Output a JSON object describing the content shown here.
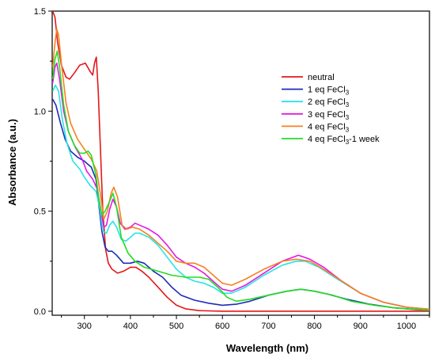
{
  "chart_data": {
    "type": "line",
    "title": "",
    "xlabel": "Wavelength (nm)",
    "ylabel": "Absorbance (a.u.)",
    "xlim": [
      230,
      1050
    ],
    "ylim": [
      -0.02,
      1.5
    ],
    "xticks": [
      300,
      400,
      500,
      600,
      700,
      800,
      900,
      1000
    ],
    "yticks": [
      0.0,
      0.5,
      1.0,
      1.5
    ],
    "ytick_labels": [
      "0.0",
      "0.5",
      "1.0",
      "1.5"
    ],
    "grid": false,
    "legend_position": "top-right",
    "series": [
      {
        "name": "neutral",
        "legend_main": "neutral",
        "legend_sub": "",
        "legend_tail": "",
        "color": "#e4171b",
        "points": [
          [
            231,
            1.5
          ],
          [
            236,
            1.47
          ],
          [
            242,
            1.34
          ],
          [
            250,
            1.23
          ],
          [
            260,
            1.17
          ],
          [
            268,
            1.16
          ],
          [
            278,
            1.19
          ],
          [
            290,
            1.23
          ],
          [
            302,
            1.24
          ],
          [
            312,
            1.2
          ],
          [
            318,
            1.18
          ],
          [
            322,
            1.24
          ],
          [
            326,
            1.27
          ],
          [
            330,
            1.1
          ],
          [
            335,
            0.8
          ],
          [
            340,
            0.5
          ],
          [
            346,
            0.31
          ],
          [
            352,
            0.24
          ],
          [
            360,
            0.21
          ],
          [
            372,
            0.19
          ],
          [
            385,
            0.2
          ],
          [
            400,
            0.22
          ],
          [
            412,
            0.22
          ],
          [
            425,
            0.2
          ],
          [
            440,
            0.17
          ],
          [
            460,
            0.12
          ],
          [
            480,
            0.07
          ],
          [
            500,
            0.03
          ],
          [
            520,
            0.012
          ],
          [
            550,
            0.003
          ],
          [
            600,
            0.0
          ],
          [
            1050,
            0.0
          ]
        ]
      },
      {
        "name": "1 eq FeCl3",
        "legend_main": "1 eq FeCl",
        "legend_sub": "3",
        "legend_tail": "",
        "color": "#1f2bb8",
        "points": [
          [
            231,
            1.06
          ],
          [
            238,
            1.03
          ],
          [
            248,
            0.94
          ],
          [
            258,
            0.86
          ],
          [
            270,
            0.8
          ],
          [
            285,
            0.77
          ],
          [
            300,
            0.75
          ],
          [
            315,
            0.72
          ],
          [
            325,
            0.66
          ],
          [
            332,
            0.52
          ],
          [
            338,
            0.4
          ],
          [
            345,
            0.32
          ],
          [
            352,
            0.3
          ],
          [
            360,
            0.3
          ],
          [
            370,
            0.28
          ],
          [
            385,
            0.24
          ],
          [
            400,
            0.24
          ],
          [
            415,
            0.25
          ],
          [
            430,
            0.24
          ],
          [
            450,
            0.2
          ],
          [
            470,
            0.17
          ],
          [
            490,
            0.12
          ],
          [
            510,
            0.08
          ],
          [
            540,
            0.055
          ],
          [
            570,
            0.04
          ],
          [
            600,
            0.03
          ],
          [
            630,
            0.035
          ],
          [
            660,
            0.05
          ],
          [
            700,
            0.08
          ],
          [
            740,
            0.1
          ],
          [
            770,
            0.11
          ],
          [
            800,
            0.1
          ],
          [
            830,
            0.085
          ],
          [
            870,
            0.06
          ],
          [
            920,
            0.035
          ],
          [
            970,
            0.018
          ],
          [
            1020,
            0.008
          ],
          [
            1050,
            0.005
          ]
        ]
      },
      {
        "name": "2 eq FeCl3",
        "legend_main": "2 eq FeCl",
        "legend_sub": "3",
        "legend_tail": "",
        "color": "#29e3e3",
        "points": [
          [
            231,
            1.1
          ],
          [
            237,
            1.13
          ],
          [
            244,
            1.1
          ],
          [
            252,
            0.96
          ],
          [
            262,
            0.84
          ],
          [
            275,
            0.75
          ],
          [
            290,
            0.71
          ],
          [
            300,
            0.67
          ],
          [
            312,
            0.63
          ],
          [
            325,
            0.6
          ],
          [
            333,
            0.52
          ],
          [
            340,
            0.4
          ],
          [
            348,
            0.39
          ],
          [
            355,
            0.43
          ],
          [
            362,
            0.45
          ],
          [
            370,
            0.42
          ],
          [
            380,
            0.36
          ],
          [
            390,
            0.35
          ],
          [
            400,
            0.37
          ],
          [
            410,
            0.39
          ],
          [
            420,
            0.39
          ],
          [
            440,
            0.37
          ],
          [
            460,
            0.33
          ],
          [
            480,
            0.27
          ],
          [
            500,
            0.21
          ],
          [
            520,
            0.17
          ],
          [
            540,
            0.15
          ],
          [
            560,
            0.14
          ],
          [
            580,
            0.12
          ],
          [
            600,
            0.09
          ],
          [
            620,
            0.09
          ],
          [
            650,
            0.12
          ],
          [
            690,
            0.18
          ],
          [
            730,
            0.23
          ],
          [
            760,
            0.25
          ],
          [
            780,
            0.25
          ],
          [
            810,
            0.22
          ],
          [
            850,
            0.16
          ],
          [
            900,
            0.09
          ],
          [
            950,
            0.045
          ],
          [
            1000,
            0.02
          ],
          [
            1050,
            0.01
          ]
        ]
      },
      {
        "name": "3 eq FeCl3",
        "legend_main": "3 eq FeCl",
        "legend_sub": "3",
        "legend_tail": "",
        "color": "#e11be3",
        "points": [
          [
            231,
            1.14
          ],
          [
            236,
            1.22
          ],
          [
            240,
            1.24
          ],
          [
            246,
            1.16
          ],
          [
            255,
            1.0
          ],
          [
            265,
            0.9
          ],
          [
            280,
            0.82
          ],
          [
            295,
            0.76
          ],
          [
            305,
            0.7
          ],
          [
            318,
            0.66
          ],
          [
            328,
            0.61
          ],
          [
            336,
            0.5
          ],
          [
            342,
            0.42
          ],
          [
            348,
            0.43
          ],
          [
            355,
            0.51
          ],
          [
            362,
            0.56
          ],
          [
            370,
            0.52
          ],
          [
            378,
            0.44
          ],
          [
            388,
            0.41
          ],
          [
            400,
            0.42
          ],
          [
            410,
            0.44
          ],
          [
            420,
            0.43
          ],
          [
            440,
            0.41
          ],
          [
            460,
            0.38
          ],
          [
            480,
            0.33
          ],
          [
            500,
            0.27
          ],
          [
            520,
            0.24
          ],
          [
            540,
            0.22
          ],
          [
            560,
            0.19
          ],
          [
            580,
            0.15
          ],
          [
            600,
            0.11
          ],
          [
            620,
            0.1
          ],
          [
            650,
            0.13
          ],
          [
            690,
            0.19
          ],
          [
            730,
            0.25
          ],
          [
            765,
            0.28
          ],
          [
            790,
            0.26
          ],
          [
            820,
            0.22
          ],
          [
            860,
            0.15
          ],
          [
            900,
            0.09
          ],
          [
            950,
            0.045
          ],
          [
            1000,
            0.02
          ],
          [
            1050,
            0.01
          ]
        ]
      },
      {
        "name": "4 eq FeCl3",
        "legend_main": "4 eq FeCl",
        "legend_sub": "3",
        "legend_tail": "",
        "color": "#f58220",
        "points": [
          [
            231,
            1.22
          ],
          [
            236,
            1.34
          ],
          [
            240,
            1.41
          ],
          [
            244,
            1.38
          ],
          [
            250,
            1.24
          ],
          [
            260,
            1.04
          ],
          [
            270,
            0.94
          ],
          [
            285,
            0.86
          ],
          [
            300,
            0.81
          ],
          [
            315,
            0.76
          ],
          [
            327,
            0.7
          ],
          [
            335,
            0.58
          ],
          [
            342,
            0.46
          ],
          [
            350,
            0.5
          ],
          [
            358,
            0.59
          ],
          [
            364,
            0.62
          ],
          [
            372,
            0.57
          ],
          [
            382,
            0.43
          ],
          [
            392,
            0.41
          ],
          [
            405,
            0.42
          ],
          [
            420,
            0.41
          ],
          [
            440,
            0.38
          ],
          [
            460,
            0.34
          ],
          [
            480,
            0.3
          ],
          [
            500,
            0.25
          ],
          [
            520,
            0.24
          ],
          [
            540,
            0.24
          ],
          [
            560,
            0.22
          ],
          [
            580,
            0.18
          ],
          [
            600,
            0.14
          ],
          [
            620,
            0.13
          ],
          [
            650,
            0.16
          ],
          [
            690,
            0.21
          ],
          [
            730,
            0.25
          ],
          [
            760,
            0.26
          ],
          [
            790,
            0.25
          ],
          [
            820,
            0.21
          ],
          [
            860,
            0.15
          ],
          [
            900,
            0.09
          ],
          [
            950,
            0.045
          ],
          [
            1000,
            0.02
          ],
          [
            1050,
            0.01
          ]
        ]
      },
      {
        "name": "4 eq FeCl3-1 week",
        "legend_main": "4 eq FeCl",
        "legend_sub": "3",
        "legend_tail": "-1 week",
        "color": "#22dd22",
        "points": [
          [
            231,
            1.16
          ],
          [
            236,
            1.26
          ],
          [
            241,
            1.3
          ],
          [
            246,
            1.22
          ],
          [
            255,
            1.03
          ],
          [
            265,
            0.9
          ],
          [
            278,
            0.83
          ],
          [
            290,
            0.79
          ],
          [
            300,
            0.79
          ],
          [
            308,
            0.8
          ],
          [
            315,
            0.78
          ],
          [
            325,
            0.68
          ],
          [
            332,
            0.55
          ],
          [
            338,
            0.48
          ],
          [
            345,
            0.5
          ],
          [
            355,
            0.55
          ],
          [
            362,
            0.59
          ],
          [
            370,
            0.52
          ],
          [
            380,
            0.37
          ],
          [
            395,
            0.29
          ],
          [
            410,
            0.25
          ],
          [
            430,
            0.22
          ],
          [
            460,
            0.2
          ],
          [
            490,
            0.18
          ],
          [
            520,
            0.17
          ],
          [
            550,
            0.17
          ],
          [
            570,
            0.16
          ],
          [
            590,
            0.12
          ],
          [
            610,
            0.07
          ],
          [
            630,
            0.05
          ],
          [
            660,
            0.06
          ],
          [
            700,
            0.08
          ],
          [
            740,
            0.1
          ],
          [
            770,
            0.11
          ],
          [
            800,
            0.1
          ],
          [
            840,
            0.08
          ],
          [
            880,
            0.05
          ],
          [
            930,
            0.03
          ],
          [
            980,
            0.015
          ],
          [
            1050,
            0.005
          ]
        ]
      }
    ]
  }
}
